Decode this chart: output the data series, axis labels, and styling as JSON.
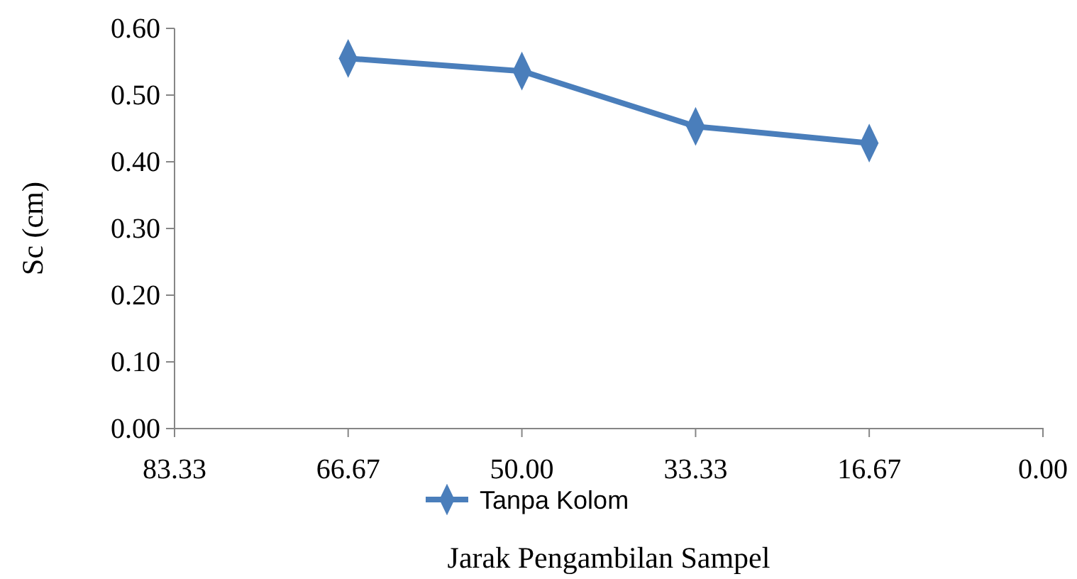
{
  "chart_data": {
    "type": "line",
    "xlabel": "Jarak Pengambilan Sampel",
    "ylabel": "Sc (cm)",
    "x": [
      66.67,
      50.0,
      33.33,
      16.67
    ],
    "series": [
      {
        "name": "Tanpa Kolom",
        "color": "#4a7ebb",
        "values": [
          0.555,
          0.536,
          0.453,
          0.428
        ]
      }
    ],
    "xlim": [
      83.33,
      0
    ],
    "xticks": [
      {
        "value": 83.33,
        "label": "83.33"
      },
      {
        "value": 66.67,
        "label": "66.67"
      },
      {
        "value": 50,
        "label": "50.00"
      },
      {
        "value": 33.33,
        "label": "33.33"
      },
      {
        "value": 16.67,
        "label": "16.67"
      },
      {
        "value": 0,
        "label": "0.00"
      }
    ],
    "ylim": [
      0,
      0.6
    ],
    "yticks": [
      {
        "value": 0,
        "label": "0.00"
      },
      {
        "value": 0.1,
        "label": "0.10"
      },
      {
        "value": 0.2,
        "label": "0.20"
      },
      {
        "value": 0.3,
        "label": "0.30"
      },
      {
        "value": 0.4,
        "label": "0.40"
      },
      {
        "value": 0.5,
        "label": "0.50"
      },
      {
        "value": 0.6,
        "label": "0.60"
      }
    ],
    "marker": "diamond",
    "legend": "bottom",
    "grid": false
  }
}
